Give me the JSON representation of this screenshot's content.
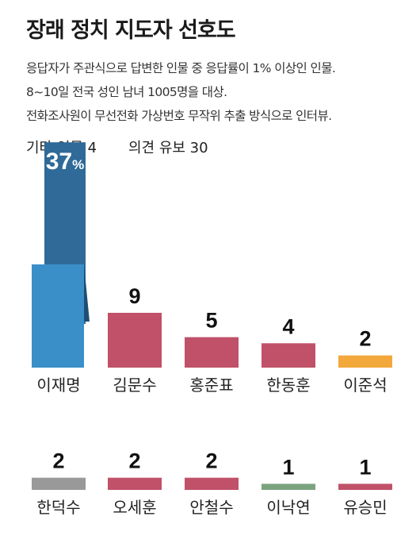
{
  "title": "장래 정치 지도자 선호도",
  "description": [
    "응답자가 주관식으로 답변한 인물 중 응답률이 1% 이상인 인물.",
    "8~10일 전국 성인 남녀 1005명을 대상.",
    "전화조사원이 무선전화 가상번호 무작위 추출 방식으로 인터뷰."
  ],
  "misc": {
    "other_persons": "기타 인물 4",
    "opinion_reserved": "의견 유보 30"
  },
  "chart_data": {
    "type": "bar",
    "unit": "%",
    "colors": {
      "blue": "#3a8fc9",
      "blue_dark": "#2f6a98",
      "red": "#c05168",
      "orange": "#f2a83a",
      "gray": "#999999",
      "green": "#7ba37f"
    },
    "rows": [
      {
        "categories": [
          "이재명",
          "김문수",
          "홍준표",
          "한동훈",
          "이준석"
        ],
        "values": [
          37,
          9,
          5,
          4,
          2
        ],
        "value_labels": [
          "37",
          "9",
          "5",
          "4",
          "2"
        ],
        "colors": [
          "#3a8fc9",
          "#c05168",
          "#c05168",
          "#c05168",
          "#f2a83a"
        ]
      },
      {
        "categories": [
          "한덕수",
          "오세훈",
          "안철수",
          "이낙연",
          "유승민"
        ],
        "values": [
          2,
          2,
          2,
          1,
          1
        ],
        "value_labels": [
          "2",
          "2",
          "2",
          "1",
          "1"
        ],
        "colors": [
          "#999999",
          "#c05168",
          "#c05168",
          "#7ba37f",
          "#c05168"
        ]
      }
    ]
  }
}
